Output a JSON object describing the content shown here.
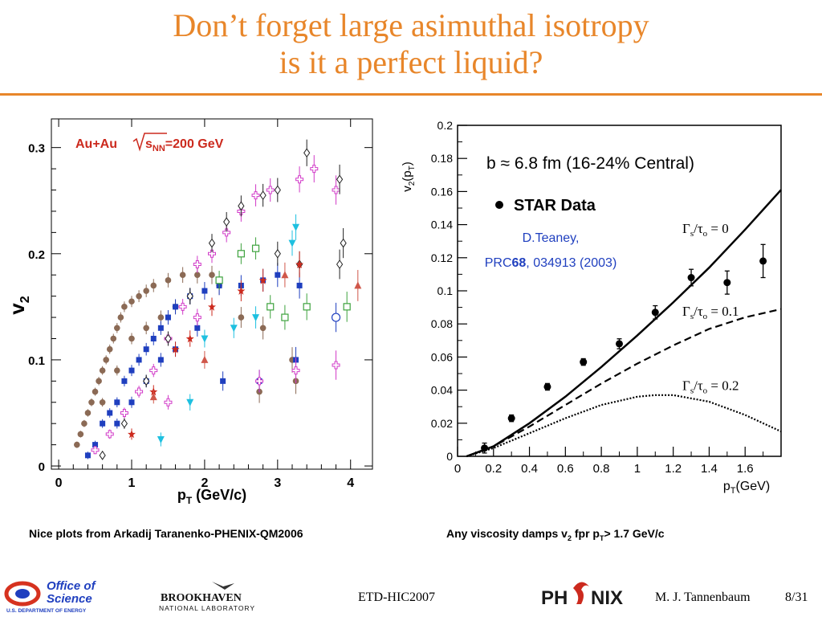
{
  "slide": {
    "title_line1": "Don’t forget large asimuthal isotropy",
    "title_line2": "is it a perfect liquid?",
    "caption_left": "Nice plots from Arkadij Taranenko-PHENIX-QM2006",
    "caption_right_pre": "Any viscosity damps v",
    "caption_right_sub1": "2",
    "caption_right_mid": " fpr p",
    "caption_right_sub2": "T",
    "caption_right_post": "> 1.7 GeV/c",
    "footer_conf": "ETD-HIC2007",
    "footer_author": "M. J. Tannenbaum",
    "footer_page": "8/31",
    "colors": {
      "accent": "#e8862a",
      "blue": "#1f3fbf",
      "red": "#cc2a1e"
    }
  },
  "logos": {
    "office_line1": "Office of",
    "office_line2": "Science",
    "office_line3": "U.S. DEPARTMENT OF ENERGY",
    "bnl_line1": "BROOKHAVEN",
    "bnl_line2": "NATIONAL LABORATORY",
    "phenix_pre": "PH",
    "phenix_post": "NIX"
  },
  "chart_data": [
    {
      "type": "scatter",
      "annotation_pre": "Au+Au",
      "annotation_s": "s",
      "annotation_sub": "NN",
      "annotation_post": "=200 GeV",
      "ylabel": "v",
      "ylabel_sub": "2",
      "xlabel_pre": "p",
      "xlabel_sub": "T",
      "xlabel_post": " (GeV/c)",
      "xlim": [
        -0.1,
        4.3
      ],
      "ylim": [
        -0.003,
        0.327
      ],
      "xticks": [
        "0",
        "1",
        "2",
        "3",
        "4"
      ],
      "yticks": [
        "0",
        "0.1",
        "0.2",
        "0.3"
      ],
      "grid": false,
      "series": [
        {
          "marker": "circle-filled",
          "color": "#8b6a55",
          "points": [
            [
              0.25,
              0.02
            ],
            [
              0.3,
              0.03
            ],
            [
              0.35,
              0.04
            ],
            [
              0.4,
              0.05
            ],
            [
              0.45,
              0.06
            ],
            [
              0.5,
              0.07
            ],
            [
              0.55,
              0.08
            ],
            [
              0.6,
              0.09
            ],
            [
              0.65,
              0.1
            ],
            [
              0.7,
              0.11
            ],
            [
              0.75,
              0.12
            ],
            [
              0.8,
              0.13
            ],
            [
              0.85,
              0.14
            ],
            [
              0.9,
              0.15
            ],
            [
              1.0,
              0.155
            ],
            [
              1.1,
              0.16
            ],
            [
              1.2,
              0.165
            ],
            [
              1.3,
              0.17
            ],
            [
              1.5,
              0.175
            ],
            [
              1.7,
              0.18
            ],
            [
              1.9,
              0.18
            ],
            [
              2.1,
              0.18
            ],
            [
              0.6,
              0.06
            ],
            [
              0.8,
              0.09
            ],
            [
              1.0,
              0.12
            ],
            [
              1.2,
              0.13
            ],
            [
              1.4,
              0.14
            ],
            [
              1.6,
              0.15
            ],
            [
              1.8,
              0.16
            ],
            [
              2.2,
              0.17
            ],
            [
              2.5,
              0.14
            ],
            [
              2.8,
              0.13
            ],
            [
              3.2,
              0.1
            ],
            [
              2.75,
              0.07
            ],
            [
              3.25,
              0.08
            ]
          ]
        },
        {
          "marker": "square-filled",
          "color": "#1f3fbf",
          "points": [
            [
              0.4,
              0.01
            ],
            [
              0.5,
              0.02
            ],
            [
              0.6,
              0.04
            ],
            [
              0.7,
              0.05
            ],
            [
              0.8,
              0.06
            ],
            [
              0.9,
              0.08
            ],
            [
              1.0,
              0.09
            ],
            [
              1.1,
              0.1
            ],
            [
              1.2,
              0.11
            ],
            [
              1.3,
              0.12
            ],
            [
              1.4,
              0.13
            ],
            [
              1.5,
              0.14
            ],
            [
              1.6,
              0.15
            ],
            [
              1.8,
              0.16
            ],
            [
              2.0,
              0.165
            ],
            [
              2.2,
              0.17
            ],
            [
              2.5,
              0.17
            ],
            [
              2.8,
              0.175
            ],
            [
              3.0,
              0.18
            ],
            [
              3.3,
              0.17
            ],
            [
              0.8,
              0.04
            ],
            [
              1.0,
              0.06
            ],
            [
              1.2,
              0.08
            ],
            [
              1.4,
              0.1
            ],
            [
              1.6,
              0.11
            ],
            [
              1.9,
              0.13
            ],
            [
              2.25,
              0.08
            ],
            [
              2.75,
              0.08
            ],
            [
              3.25,
              0.1
            ]
          ]
        },
        {
          "marker": "cross-open",
          "color": "#d13ac8",
          "points": [
            [
              0.5,
              0.015
            ],
            [
              0.7,
              0.03
            ],
            [
              0.9,
              0.05
            ],
            [
              1.1,
              0.07
            ],
            [
              1.3,
              0.09
            ],
            [
              1.5,
              0.12
            ],
            [
              1.7,
              0.15
            ],
            [
              1.9,
              0.19
            ],
            [
              2.1,
              0.2
            ],
            [
              2.3,
              0.22
            ],
            [
              2.5,
              0.24
            ],
            [
              2.7,
              0.255
            ],
            [
              2.9,
              0.26
            ],
            [
              3.3,
              0.27
            ],
            [
              3.5,
              0.28
            ],
            [
              3.8,
              0.26
            ],
            [
              3.8,
              0.095
            ],
            [
              3.25,
              0.09
            ],
            [
              2.75,
              0.08
            ],
            [
              1.5,
              0.06
            ],
            [
              1.9,
              0.14
            ]
          ]
        },
        {
          "marker": "diamond-open",
          "color": "#222222",
          "points": [
            [
              0.6,
              0.01
            ],
            [
              0.9,
              0.04
            ],
            [
              1.2,
              0.08
            ],
            [
              1.5,
              0.12
            ],
            [
              1.8,
              0.16
            ],
            [
              2.1,
              0.21
            ],
            [
              2.3,
              0.23
            ],
            [
              2.5,
              0.245
            ],
            [
              2.8,
              0.255
            ],
            [
              3.0,
              0.26
            ],
            [
              3.4,
              0.295
            ],
            [
              3.85,
              0.27
            ],
            [
              3.9,
              0.21
            ],
            [
              3.85,
              0.19
            ],
            [
              3.0,
              0.2
            ],
            [
              3.3,
              0.19
            ]
          ]
        },
        {
          "marker": "square-open",
          "color": "#3da23d",
          "points": [
            [
              2.2,
              0.175
            ],
            [
              2.5,
              0.2
            ],
            [
              2.7,
              0.205
            ],
            [
              2.9,
              0.15
            ],
            [
              3.1,
              0.14
            ],
            [
              3.4,
              0.15
            ],
            [
              3.95,
              0.15
            ]
          ]
        },
        {
          "marker": "triangle-down-filled",
          "color": "#1ec0e0",
          "points": [
            [
              1.4,
              0.025
            ],
            [
              1.8,
              0.06
            ],
            [
              2.0,
              0.12
            ],
            [
              2.4,
              0.13
            ],
            [
              2.7,
              0.14
            ],
            [
              3.2,
              0.21
            ],
            [
              3.25,
              0.225
            ]
          ]
        },
        {
          "marker": "star-filled",
          "color": "#cc2a1e",
          "points": [
            [
              1.0,
              0.03
            ],
            [
              1.3,
              0.07
            ],
            [
              1.6,
              0.11
            ],
            [
              1.8,
              0.12
            ],
            [
              2.1,
              0.15
            ],
            [
              2.5,
              0.165
            ],
            [
              2.8,
              0.175
            ],
            [
              3.3,
              0.19
            ]
          ]
        },
        {
          "marker": "triangle-filled",
          "color": "#d0574a",
          "points": [
            [
              1.3,
              0.065
            ],
            [
              2.0,
              0.1
            ],
            [
              3.1,
              0.18
            ],
            [
              4.1,
              0.17
            ]
          ]
        },
        {
          "marker": "circle-open",
          "color": "#1f3fbf",
          "points": [
            [
              3.8,
              0.14
            ]
          ]
        }
      ]
    },
    {
      "type": "line",
      "annotation_title": "b ≈ 6.8 fm (16-24% Central)",
      "legend_label": "STAR Data",
      "citation_line1": "D.Teaney,",
      "citation_line2_pre": "PRC",
      "citation_line2_bold": "68",
      "citation_line2_post": ", 034913 (2003)",
      "ylabel_pre": "v",
      "ylabel_sub": "2",
      "ylabel_post": "(p",
      "ylabel_sub2": "T",
      "ylabel_close": ")",
      "xlabel_pre": "p",
      "xlabel_sub": "T",
      "xlabel_post": "(GeV)",
      "xlim": [
        0,
        1.8
      ],
      "ylim": [
        0,
        0.2
      ],
      "xticks": [
        "0",
        "0.2",
        "0.4",
        "0.6",
        "0.8",
        "1",
        "1.2",
        "1.4",
        "1.6"
      ],
      "yticks": [
        "0",
        "0.02",
        "0.04",
        "0.06",
        "0.08",
        "0.1",
        "0.12",
        "0.14",
        "0.16",
        "0.18",
        "0.2"
      ],
      "grid": false,
      "data_points": {
        "x": [
          0.15,
          0.3,
          0.5,
          0.7,
          0.9,
          1.1,
          1.3,
          1.5,
          1.7
        ],
        "y": [
          0.005,
          0.023,
          0.042,
          0.057,
          0.068,
          0.087,
          0.108,
          0.105,
          0.118
        ],
        "err": [
          0.003,
          0.002,
          0.002,
          0.002,
          0.003,
          0.004,
          0.005,
          0.007,
          0.01
        ]
      },
      "curves": [
        {
          "label_pre": "Γ",
          "label_sub": "s",
          "label_post": "/τ",
          "label_sub2": "o",
          "label_val": " = 0",
          "style": "solid",
          "x": [
            0.05,
            0.2,
            0.4,
            0.6,
            0.8,
            1.0,
            1.2,
            1.4,
            1.6,
            1.8
          ],
          "y": [
            0.0,
            0.006,
            0.02,
            0.036,
            0.054,
            0.073,
            0.093,
            0.114,
            0.137,
            0.161
          ]
        },
        {
          "label_pre": "Γ",
          "label_sub": "s",
          "label_post": "/τ",
          "label_sub2": "o",
          "label_val": " = 0.1",
          "style": "dashed",
          "x": [
            0.05,
            0.2,
            0.4,
            0.6,
            0.8,
            1.0,
            1.2,
            1.4,
            1.6,
            1.8
          ],
          "y": [
            0.0,
            0.006,
            0.018,
            0.031,
            0.044,
            0.056,
            0.067,
            0.077,
            0.084,
            0.089
          ]
        },
        {
          "label_pre": "Γ",
          "label_sub": "s",
          "label_post": "/τ",
          "label_sub2": "o",
          "label_val": " = 0.2",
          "style": "dotted",
          "x": [
            0.05,
            0.2,
            0.4,
            0.6,
            0.8,
            1.0,
            1.1,
            1.2,
            1.4,
            1.6,
            1.8
          ],
          "y": [
            0.0,
            0.005,
            0.014,
            0.023,
            0.031,
            0.036,
            0.037,
            0.037,
            0.033,
            0.025,
            0.015
          ]
        }
      ]
    }
  ]
}
